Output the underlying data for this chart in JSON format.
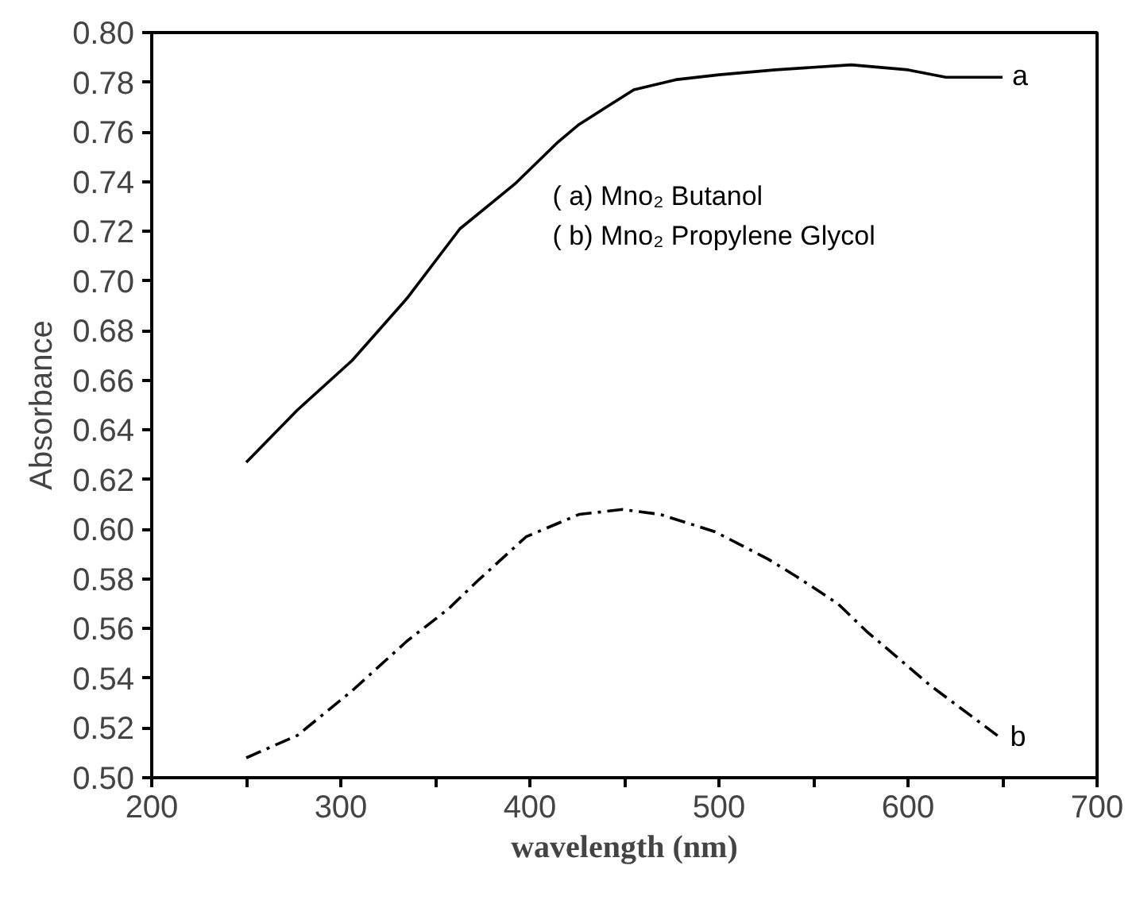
{
  "chart_data": {
    "type": "line",
    "xlabel": "wavelength (nm)",
    "ylabel": "Absorbance",
    "xlim": [
      200,
      700
    ],
    "ylim": [
      0.5,
      0.8
    ],
    "xticks": [
      200,
      {
        "value": 250,
        "label": null
      },
      300,
      {
        "value": 350,
        "label": null
      },
      400,
      {
        "value": 450,
        "label": null
      },
      500,
      {
        "value": 550,
        "label": null
      },
      600,
      {
        "value": 650,
        "label": null
      },
      700
    ],
    "yticks": [
      {
        "value": 0.5,
        "label": "0.50"
      },
      {
        "value": 0.52,
        "label": "0.52"
      },
      {
        "value": 0.54,
        "label": "0.54"
      },
      {
        "value": 0.56,
        "label": "0.56"
      },
      {
        "value": 0.58,
        "label": "0.58"
      },
      {
        "value": 0.6,
        "label": "0.60"
      },
      {
        "value": 0.62,
        "label": "0.62"
      },
      {
        "value": 0.64,
        "label": "0.64"
      },
      {
        "value": 0.66,
        "label": "0.66"
      },
      {
        "value": 0.68,
        "label": "0.68"
      },
      {
        "value": 0.7,
        "label": "0.70"
      },
      {
        "value": 0.72,
        "label": "0.72"
      },
      {
        "value": 0.74,
        "label": "0.74"
      },
      {
        "value": 0.76,
        "label": "0.76"
      },
      {
        "value": 0.78,
        "label": "0.78"
      },
      {
        "value": 0.8,
        "label": "0.80"
      }
    ],
    "grid": false,
    "marker": "none",
    "annotations": [
      "( a)  Mno₂ Butanol",
      "( b)  Mno₂ Propylene Glycol"
    ],
    "series": [
      {
        "name": "a",
        "color": "#000000",
        "line_style": "solid",
        "x": [
          250,
          277,
          306,
          335,
          363,
          392,
          415,
          426,
          455,
          477,
          500,
          530,
          570,
          600,
          620,
          650
        ],
        "values": [
          0.627,
          0.648,
          0.668,
          0.693,
          0.721,
          0.739,
          0.756,
          0.763,
          0.777,
          0.781,
          0.783,
          0.785,
          0.787,
          0.785,
          0.782,
          0.782
        ]
      },
      {
        "name": "b",
        "color": "#000000",
        "line_style": "dashdot",
        "x": [
          250,
          277,
          306,
          335,
          357,
          372,
          398,
          426,
          449,
          469,
          498,
          526,
          541,
          563,
          578,
          612,
          649
        ],
        "values": [
          0.508,
          0.517,
          0.535,
          0.555,
          0.568,
          0.579,
          0.597,
          0.606,
          0.608,
          0.606,
          0.599,
          0.588,
          0.581,
          0.57,
          0.559,
          0.537,
          0.516
        ]
      }
    ]
  }
}
